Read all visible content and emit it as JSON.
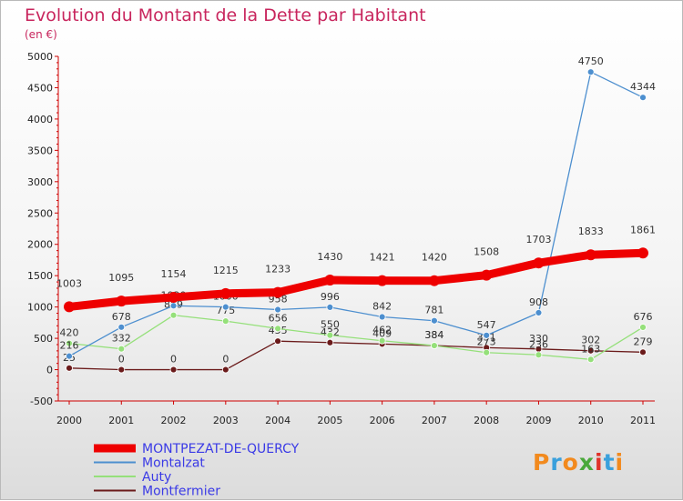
{
  "title": "Evolution du Montant de la Dette par Habitant",
  "subtitle": "(en €)",
  "logo": "Proxiti",
  "chart_data": {
    "type": "line",
    "x": [
      "2000",
      "2001",
      "2002",
      "2003",
      "2004",
      "2005",
      "2006",
      "2007",
      "2008",
      "2009",
      "2010",
      "2011"
    ],
    "ylim": [
      -500,
      5000
    ],
    "yticks": [
      -500,
      0,
      500,
      1000,
      1500,
      2000,
      2500,
      3000,
      3500,
      4000,
      4500,
      5000
    ],
    "grid": false,
    "legend_position": "bottom-left",
    "series": [
      {
        "name": "MONTPEZAT-DE-QUERCY",
        "color": "#ee0000",
        "values": [
          1003,
          1095,
          1154,
          1215,
          1233,
          1430,
          1421,
          1420,
          1508,
          1703,
          1833,
          1861
        ]
      },
      {
        "name": "Montalzat",
        "color": "#4d8fcf",
        "values": [
          216,
          678,
          1020,
          1000,
          958,
          996,
          842,
          781,
          547,
          908,
          4750,
          4344
        ]
      },
      {
        "name": "Auty",
        "color": "#95e07a",
        "values": [
          420,
          332,
          869,
          775,
          656,
          550,
          462,
          384,
          273,
          236,
          163,
          676
        ]
      },
      {
        "name": "Montfermier",
        "color": "#6b1b1b",
        "values": [
          25,
          0,
          0,
          0,
          455,
          432,
          409,
          384,
          351,
          330,
          302,
          279
        ]
      }
    ]
  }
}
